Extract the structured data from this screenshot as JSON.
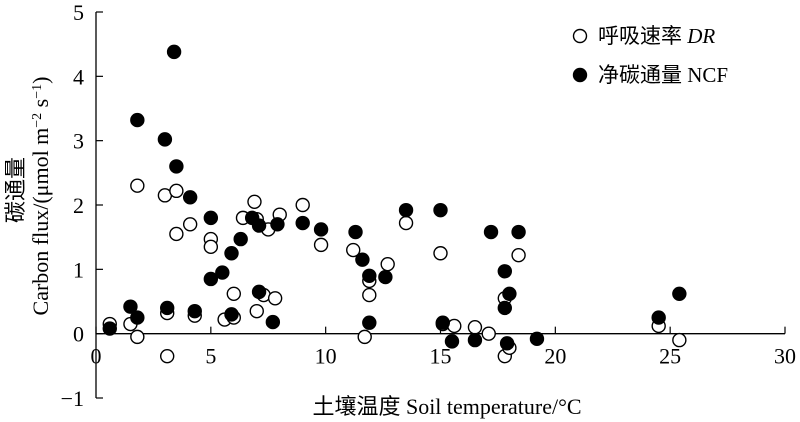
{
  "chart_data": {
    "type": "scatter",
    "xlabel": "土壤温度 Soil temperature/°C",
    "ylabel_cn": "碳通量",
    "ylabel_en": "Carbon flux/(μmol m",
    "ylabel_unit_m_exp": "−2",
    "ylabel_unit_s": " s",
    "ylabel_unit_s_exp": "−1",
    "ylabel_close": ")",
    "xlim": [
      0,
      30
    ],
    "ylim": [
      -1,
      5
    ],
    "xticks": [
      "0",
      "5",
      "10",
      "15",
      "20",
      "25",
      "30"
    ],
    "yticks": [
      "−1",
      "0",
      "1",
      "2",
      "3",
      "4",
      "5"
    ],
    "legend_position": "top-right",
    "grid": false,
    "series": [
      {
        "name_cn": "呼吸速率",
        "name_en": "DR",
        "marker": "open-circle",
        "points": [
          [
            0.6,
            0.15
          ],
          [
            1.5,
            0.15
          ],
          [
            1.8,
            2.3
          ],
          [
            1.8,
            -0.05
          ],
          [
            3.0,
            2.15
          ],
          [
            3.1,
            -0.35
          ],
          [
            3.1,
            0.32
          ],
          [
            3.5,
            2.22
          ],
          [
            3.5,
            1.55
          ],
          [
            4.1,
            1.7
          ],
          [
            4.3,
            0.28
          ],
          [
            5.0,
            1.47
          ],
          [
            5.0,
            1.35
          ],
          [
            5.6,
            0.22
          ],
          [
            6.0,
            0.62
          ],
          [
            6.0,
            0.25
          ],
          [
            6.4,
            1.8
          ],
          [
            6.9,
            2.05
          ],
          [
            7.0,
            1.78
          ],
          [
            7.0,
            0.35
          ],
          [
            7.3,
            0.6
          ],
          [
            7.5,
            1.62
          ],
          [
            7.8,
            0.55
          ],
          [
            8.0,
            1.85
          ],
          [
            9.0,
            2.0
          ],
          [
            9.8,
            1.38
          ],
          [
            11.2,
            1.3
          ],
          [
            11.7,
            -0.05
          ],
          [
            11.9,
            0.82
          ],
          [
            11.9,
            0.6
          ],
          [
            12.7,
            1.08
          ],
          [
            13.5,
            1.72
          ],
          [
            15.0,
            1.25
          ],
          [
            15.1,
            0.15
          ],
          [
            15.6,
            0.12
          ],
          [
            16.5,
            0.1
          ],
          [
            17.1,
            0.0
          ],
          [
            17.8,
            0.55
          ],
          [
            17.8,
            -0.35
          ],
          [
            18.0,
            -0.22
          ],
          [
            18.4,
            1.22
          ],
          [
            24.5,
            0.12
          ],
          [
            25.4,
            -0.1
          ]
        ]
      },
      {
        "name_cn": "净碳通量",
        "name_en": "NCF",
        "marker": "filled-circle",
        "points": [
          [
            0.6,
            0.08
          ],
          [
            1.5,
            0.42
          ],
          [
            1.8,
            3.32
          ],
          [
            1.8,
            0.25
          ],
          [
            3.0,
            3.02
          ],
          [
            3.1,
            0.4
          ],
          [
            3.4,
            4.38
          ],
          [
            3.5,
            2.6
          ],
          [
            4.1,
            2.12
          ],
          [
            4.3,
            0.35
          ],
          [
            5.0,
            1.8
          ],
          [
            5.0,
            0.85
          ],
          [
            5.5,
            0.95
          ],
          [
            5.9,
            1.25
          ],
          [
            5.9,
            0.3
          ],
          [
            6.3,
            1.47
          ],
          [
            6.8,
            1.8
          ],
          [
            7.1,
            0.65
          ],
          [
            7.1,
            1.68
          ],
          [
            7.7,
            0.18
          ],
          [
            7.9,
            1.7
          ],
          [
            9.0,
            1.72
          ],
          [
            9.8,
            1.62
          ],
          [
            11.3,
            1.58
          ],
          [
            11.6,
            1.15
          ],
          [
            11.9,
            0.9
          ],
          [
            11.9,
            0.17
          ],
          [
            12.6,
            0.88
          ],
          [
            13.5,
            1.92
          ],
          [
            15.0,
            1.92
          ],
          [
            15.1,
            0.17
          ],
          [
            15.5,
            -0.12
          ],
          [
            16.5,
            -0.1
          ],
          [
            17.2,
            1.58
          ],
          [
            17.8,
            0.97
          ],
          [
            17.8,
            0.4
          ],
          [
            17.9,
            -0.15
          ],
          [
            18.0,
            0.62
          ],
          [
            18.4,
            1.58
          ],
          [
            19.2,
            -0.08
          ],
          [
            24.5,
            0.25
          ],
          [
            25.4,
            0.62
          ]
        ]
      }
    ]
  }
}
